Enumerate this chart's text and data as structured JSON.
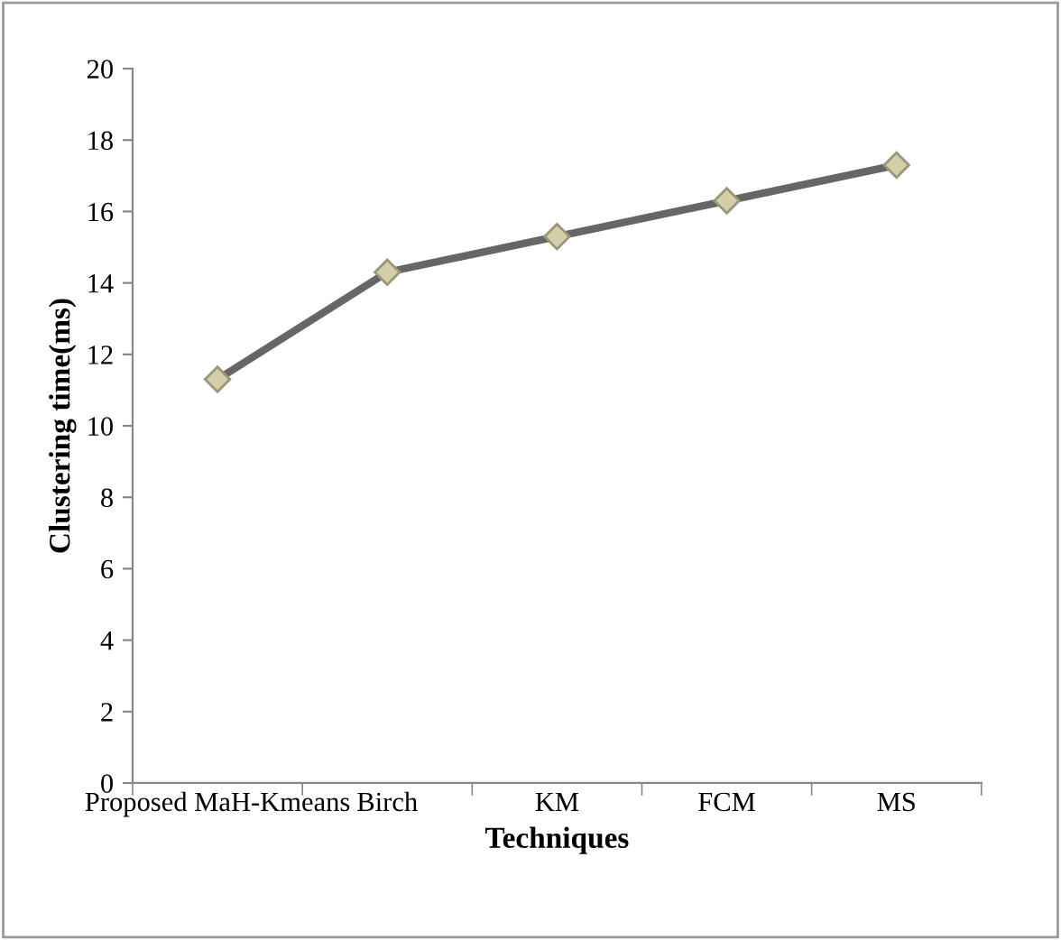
{
  "chart_data": {
    "type": "line",
    "xlabel": "Techniques",
    "ylabel": "Clustering time(ms)",
    "categories": [
      "Proposed MaH-Kmeans",
      "Birch",
      "KM",
      "FCM",
      "MS"
    ],
    "series": [
      {
        "color": "#666666",
        "values": [
          11.3,
          14.3,
          15.3,
          16.3,
          17.3
        ]
      }
    ],
    "marker": "diamond",
    "ylim": [
      0,
      20
    ],
    "yticks": [
      0,
      2,
      4,
      6,
      8,
      10,
      12,
      14,
      16,
      18,
      20
    ],
    "grid": false,
    "legend": false
  }
}
